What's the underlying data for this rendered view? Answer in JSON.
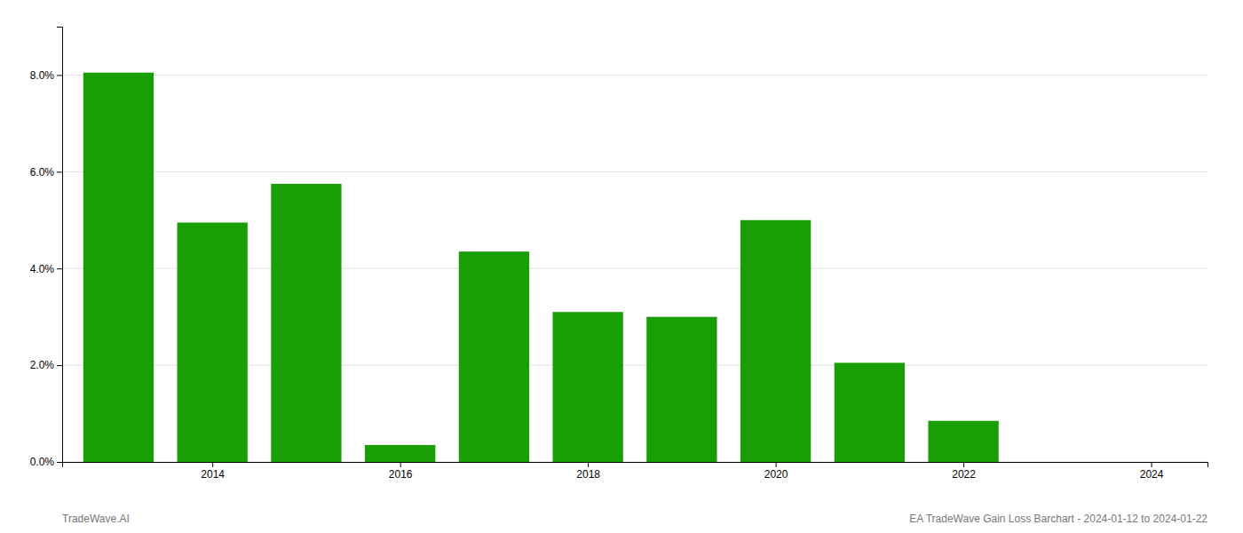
{
  "chart_data": {
    "type": "bar",
    "x": [
      2013,
      2014,
      2015,
      2016,
      2017,
      2018,
      2019,
      2020,
      2021,
      2022,
      2023
    ],
    "values": [
      0.0805,
      0.0495,
      0.0575,
      0.0035,
      0.0435,
      0.031,
      0.03,
      0.05,
      0.0205,
      0.0085,
      0.0
    ],
    "color": "#1a9e06",
    "xlim": [
      2012.4,
      2024.6
    ],
    "xticks": [
      2014,
      2016,
      2018,
      2020,
      2022,
      2024
    ],
    "ylim": [
      0.0,
      0.09
    ],
    "yticks": [
      {
        "value": 0.0,
        "label": "0.0%"
      },
      {
        "value": 0.02,
        "label": "2.0%"
      },
      {
        "value": 0.04,
        "label": "4.0%"
      },
      {
        "value": 0.06,
        "label": "6.0%"
      },
      {
        "value": 0.08,
        "label": "8.0%"
      }
    ],
    "grid": true,
    "annotations": [
      "TradeWave.AI",
      "EA TradeWave Gain Loss Barchart - 2024-01-12 to 2024-01-22"
    ]
  }
}
